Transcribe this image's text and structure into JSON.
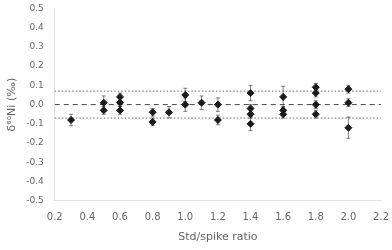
{
  "chart_data": {
    "type": "scatter",
    "xlabel": "Std/spike ratio",
    "ylabel": "δ⁶⁰Ni (‰)",
    "xlim": [
      0.2,
      2.2
    ],
    "ylim": [
      -0.5,
      0.5
    ],
    "xticks": [
      0.2,
      0.4,
      0.6,
      0.8,
      {
        "value": 1.0,
        "label": "1.0"
      },
      1.2,
      1.4,
      1.6,
      1.8,
      {
        "value": 2.0,
        "label": "2.0"
      },
      2.2
    ],
    "yticks": [
      -0.5,
      -0.4,
      -0.3,
      -0.2,
      -0.1,
      {
        "value": 0.0,
        "label": "0.0"
      },
      0.1,
      0.2,
      0.3,
      0.4,
      0.5
    ],
    "grid": false,
    "hlines": [
      {
        "y": 0.0,
        "line_style": "dashed",
        "color": "#444444"
      },
      {
        "y": 0.07,
        "line_style": "dotted",
        "color": "#666666"
      },
      {
        "y": -0.07,
        "line_style": "dotted",
        "color": "#666666"
      }
    ],
    "series": [
      {
        "color": "#1a1a1a",
        "marker": "diamond",
        "x": [
          0.3,
          0.5,
          0.5,
          0.6,
          0.6,
          0.6,
          0.8,
          0.8,
          0.9,
          1.0,
          1.0,
          1.1,
          1.2,
          1.2,
          1.4,
          1.4,
          1.4,
          1.4,
          1.6,
          1.6,
          1.6,
          1.8,
          1.8,
          1.8,
          1.8,
          2.0,
          2.0,
          2.0
        ],
        "values": [
          -0.08,
          0.01,
          -0.03,
          0.04,
          0.01,
          -0.03,
          -0.04,
          -0.09,
          -0.04,
          0.05,
          0.0,
          0.01,
          0.0,
          -0.08,
          0.06,
          -0.02,
          -0.05,
          -0.1,
          0.04,
          -0.03,
          -0.05,
          0.09,
          0.06,
          0.0,
          -0.05,
          0.08,
          0.01,
          -0.12
        ],
        "yerr": [
          0.03,
          0.035,
          0.02,
          0.02,
          0.02,
          0.02,
          0.02,
          0.02,
          0.03,
          0.035,
          0.035,
          0.035,
          0.035,
          0.025,
          0.04,
          0.02,
          0.02,
          0.035,
          0.055,
          0.02,
          0.02,
          0.02,
          0.02,
          0.02,
          0.02,
          0.02,
          0.02,
          0.055
        ]
      }
    ]
  }
}
